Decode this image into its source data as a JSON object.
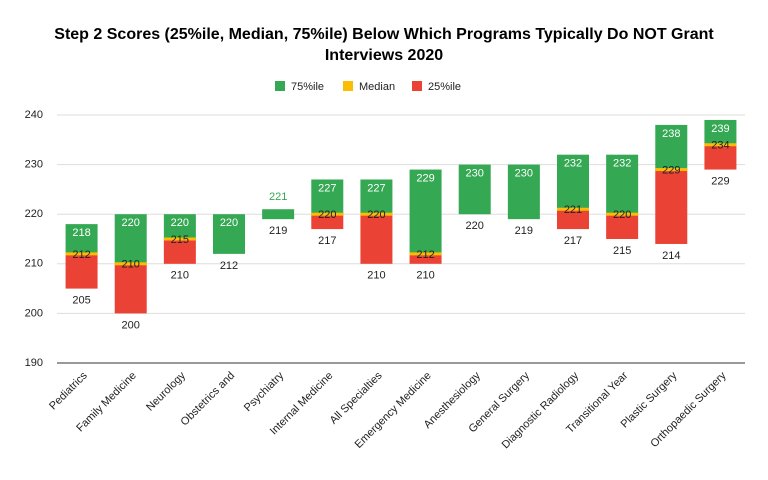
{
  "chart_data": {
    "type": "floating-bar",
    "title": "Step 2 Scores (25%ile, Median, 75%ile) Below Which Programs Typically Do NOT Grant Interviews 2020",
    "categories": [
      "Pediatrics",
      "Family Medicine",
      "Neurology",
      "Obstetrics and",
      "Psychiatry",
      "Internal Medicine",
      "All Specialties",
      "Emergency Medicine",
      "Anesthesiology",
      "General Surgery",
      "Diagnostic Radiology",
      "Transitional Year",
      "Plastic Surgery",
      "Orthopaedic Surgery"
    ],
    "series": [
      {
        "name": "75%ile",
        "color": "#34a853",
        "values": [
          218,
          220,
          220,
          220,
          221,
          227,
          227,
          229,
          230,
          230,
          232,
          232,
          238,
          239
        ]
      },
      {
        "name": "Median",
        "color": "#fbbc04",
        "values": [
          212,
          210,
          215,
          null,
          null,
          220,
          220,
          212,
          null,
          null,
          221,
          220,
          229,
          234
        ]
      },
      {
        "name": "25%ile",
        "color": "#ea4335",
        "values": [
          205,
          200,
          210,
          212,
          219,
          217,
          210,
          210,
          220,
          219,
          217,
          215,
          214,
          229
        ]
      }
    ],
    "ylim": [
      190,
      240
    ],
    "yticks": [
      190,
      200,
      210,
      220,
      230,
      240
    ],
    "grid": true
  }
}
